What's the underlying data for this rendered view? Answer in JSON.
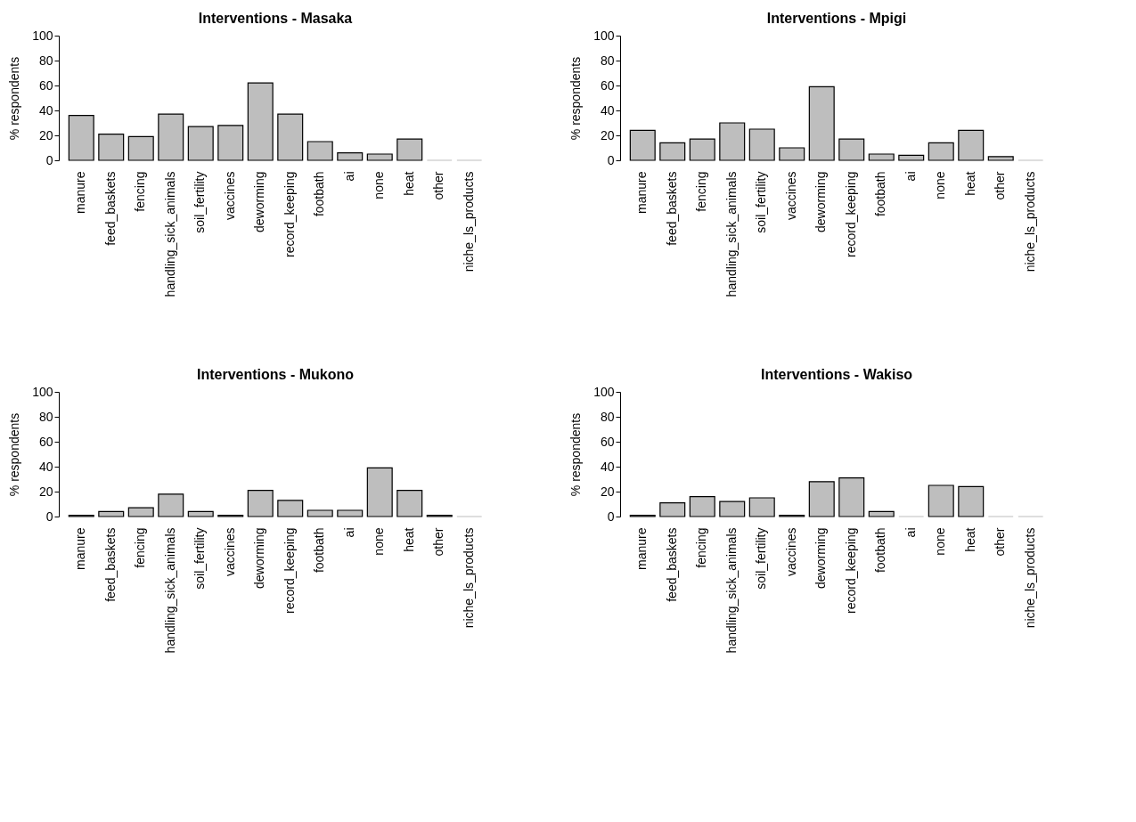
{
  "chart_data": [
    {
      "type": "bar",
      "title": "Interventions - Masaka",
      "ylabel": "% respondents",
      "categories": [
        "manure",
        "feed_baskets",
        "fencing",
        "handling_sick_animals",
        "soil_fertility",
        "vaccines",
        "deworming",
        "record_keeping",
        "footbath",
        "ai",
        "none",
        "heat",
        "other",
        "niche_ls_products"
      ],
      "values": [
        36,
        21,
        19,
        37,
        27,
        28,
        62,
        37,
        15,
        6,
        5,
        17,
        0,
        0
      ],
      "color": "#bebebe",
      "ylim": [
        0,
        100
      ],
      "yticks": [
        0,
        20,
        40,
        60,
        80,
        100
      ],
      "grid": false
    },
    {
      "type": "bar",
      "title": "Interventions - Mpigi",
      "ylabel": "% respondents",
      "categories": [
        "manure",
        "feed_baskets",
        "fencing",
        "handling_sick_animals",
        "soil_fertility",
        "vaccines",
        "deworming",
        "record_keeping",
        "footbath",
        "ai",
        "none",
        "heat",
        "other",
        "niche_ls_products"
      ],
      "values": [
        24,
        14,
        17,
        30,
        25,
        10,
        59,
        17,
        5,
        4,
        14,
        24,
        3,
        0
      ],
      "color": "#bebebe",
      "ylim": [
        0,
        100
      ],
      "yticks": [
        0,
        20,
        40,
        60,
        80,
        100
      ],
      "grid": false
    },
    {
      "type": "bar",
      "title": "Interventions - Mukono",
      "ylabel": "% respondents",
      "categories": [
        "manure",
        "feed_baskets",
        "fencing",
        "handling_sick_animals",
        "soil_fertility",
        "vaccines",
        "deworming",
        "record_keeping",
        "footbath",
        "ai",
        "none",
        "heat",
        "other",
        "niche_ls_products"
      ],
      "values": [
        1,
        4,
        7,
        18,
        4,
        1,
        21,
        13,
        5,
        5,
        39,
        21,
        1,
        0
      ],
      "color": "#bebebe",
      "ylim": [
        0,
        100
      ],
      "yticks": [
        0,
        20,
        40,
        60,
        80,
        100
      ],
      "grid": false
    },
    {
      "type": "bar",
      "title": "Interventions - Wakiso",
      "ylabel": "% respondents",
      "categories": [
        "manure",
        "feed_baskets",
        "fencing",
        "handling_sick_animals",
        "soil_fertility",
        "vaccines",
        "deworming",
        "record_keeping",
        "footbath",
        "ai",
        "none",
        "heat",
        "other",
        "niche_ls_products"
      ],
      "values": [
        1,
        11,
        16,
        12,
        15,
        1,
        28,
        31,
        4,
        0,
        25,
        24,
        0,
        0
      ],
      "color": "#bebebe",
      "ylim": [
        0,
        100
      ],
      "yticks": [
        0,
        20,
        40,
        60,
        80,
        100
      ],
      "grid": false
    }
  ]
}
